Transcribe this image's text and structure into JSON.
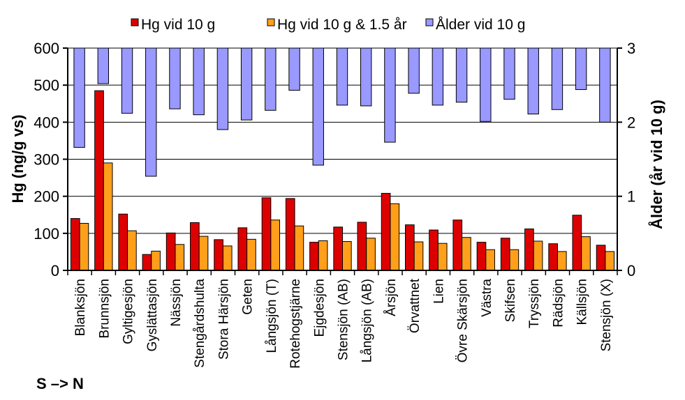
{
  "chart_data": {
    "type": "bar",
    "categories": [
      "Blanksjön",
      "Brunnsjön",
      "Gyltigesjön",
      "Gyslättasjön",
      "Nässjön",
      "Stengårdshulta",
      "Stora Härsjön",
      "Geten",
      "Långsjön (T)",
      "Rotehogstjärne",
      "Ejgdesjön",
      "Stensjön (AB)",
      "Långsjön (AB)",
      "Årsjön",
      "Örvattnet",
      "Lien",
      "Övre Skärsjön",
      "Västra",
      "Skifsen",
      "Tryssjön",
      "Rädsjön",
      "Källsjön",
      "Stensjön (X)"
    ],
    "series": [
      {
        "name": "Hg vid 10 g",
        "axis": "left",
        "color": "#dd0000",
        "values": [
          140,
          485,
          152,
          43,
          101,
          129,
          83,
          115,
          196,
          194,
          76,
          117,
          130,
          208,
          123,
          109,
          136,
          76,
          87,
          112,
          72,
          149,
          68
        ]
      },
      {
        "name": "Hg vid 10 g & 1.5 år",
        "axis": "left",
        "color": "#ff9f1a",
        "values": [
          127,
          290,
          107,
          52,
          70,
          92,
          66,
          84,
          136,
          120,
          80,
          78,
          87,
          180,
          77,
          73,
          89,
          56,
          56,
          79,
          51,
          91,
          51
        ]
      },
      {
        "name": "Ålder vid 10 g",
        "axis": "right",
        "color": "#9999ff",
        "values": [
          1.66,
          2.52,
          2.12,
          1.27,
          2.18,
          2.1,
          1.9,
          2.03,
          2.16,
          2.43,
          1.42,
          2.23,
          2.22,
          1.73,
          2.39,
          2.23,
          2.27,
          2.01,
          2.31,
          2.11,
          2.17,
          2.44,
          2.0
        ]
      }
    ],
    "left_axis": {
      "label": "Hg  (ng/g vs)",
      "range": [
        0,
        600
      ],
      "ticks": [
        "0",
        "100",
        "200",
        "300",
        "400",
        "500",
        "600"
      ]
    },
    "right_axis": {
      "label": "Ålder  (år vid 10 g)",
      "range": [
        0,
        3
      ],
      "ticks": [
        "0",
        "1",
        "2",
        "3"
      ]
    },
    "direction_label": "S –> N",
    "grid": true,
    "legend": "top"
  }
}
